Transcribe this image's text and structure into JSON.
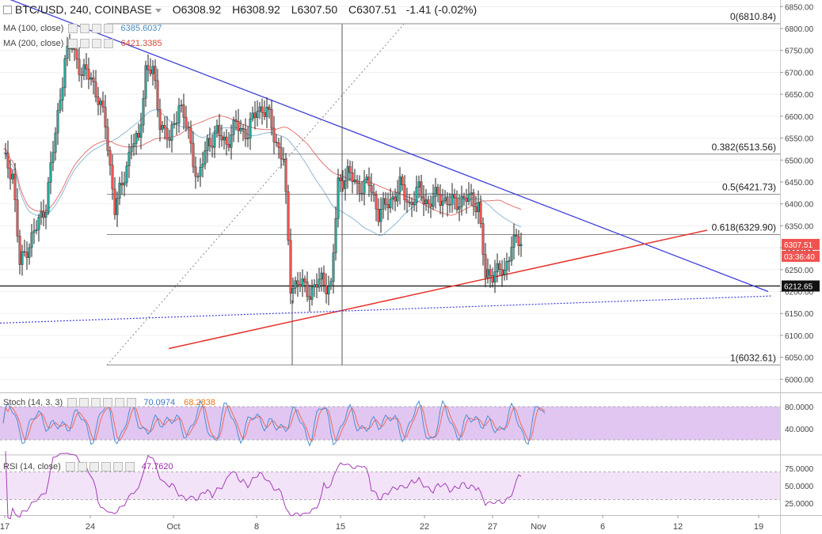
{
  "header": {
    "symbol": "BTC/USD, 240, COINBASE",
    "open": "O6308.92",
    "high": "H6308.92",
    "low": "L6307.50",
    "close": "C6307.51",
    "change": "-1.41 (-0.02%)"
  },
  "indicators": {
    "ma100": {
      "label": "MA (100, close)",
      "value": "6385.6037",
      "color": "#4a8fc0"
    },
    "ma200": {
      "label": "MA (200, close)",
      "value": "6421.3385",
      "color": "#d9473b"
    },
    "stoch": {
      "label": "Stoch (14, 3, 3)",
      "value_k": "70.0974",
      "value_d": "68.2838"
    },
    "rsi": {
      "label": "RSI (14, close)",
      "value": "47.7620"
    }
  },
  "chart_data": {
    "type": "candlestick",
    "price_axis": {
      "range": [
        5970,
        6865
      ],
      "ticks": [
        "6850.00",
        "6800.00",
        "6750.00",
        "6700.00",
        "6650.00",
        "6600.00",
        "6550.00",
        "6500.00",
        "6450.00",
        "6400.00",
        "6350.00",
        "6300.00",
        "6250.00",
        "6200.00",
        "6150.00",
        "6100.00",
        "6050.00",
        "6000.00"
      ]
    },
    "time_axis": {
      "ticks": [
        "17",
        "24",
        "Oct",
        "8",
        "15",
        "22",
        "27",
        "Nov",
        "6",
        "12",
        "19"
      ]
    },
    "price_labels": {
      "last": "6307.51",
      "countdown": "03:36:40",
      "support": "6212.65"
    },
    "fibonacci": [
      {
        "label": "0(6810.84)",
        "price": 6810.84
      },
      {
        "label": "0.382(6513.56)",
        "price": 6513.56
      },
      {
        "label": "0.5(6421.73)",
        "price": 6421.73
      },
      {
        "label": "0.618(6329.90)",
        "price": 6329.9
      },
      {
        "label": "1(6032.61)",
        "price": 6032.61
      }
    ],
    "support_level": 6212.65,
    "stoch_axis": {
      "ticks": [
        "80.0000",
        "40.0000"
      ],
      "upper": 80,
      "lower": 20
    },
    "rsi_axis": {
      "ticks": [
        "75.0000",
        "50.0000",
        "25.0000"
      ],
      "upper": 70,
      "lower": 30
    },
    "colors": {
      "up": "#26a69a",
      "down": "#ef5350",
      "ma100": "#8fb8d6",
      "ma200": "#e57373",
      "trend_down": "#3f3fd9",
      "trend_up": "#e8302a",
      "stoch_band": "#e1c6f1",
      "rsi_band": "#f3e3f8",
      "stoch_k": "#4a8fd4",
      "stoch_d": "#ef6b5b",
      "rsi_line": "#a43db7"
    }
  }
}
